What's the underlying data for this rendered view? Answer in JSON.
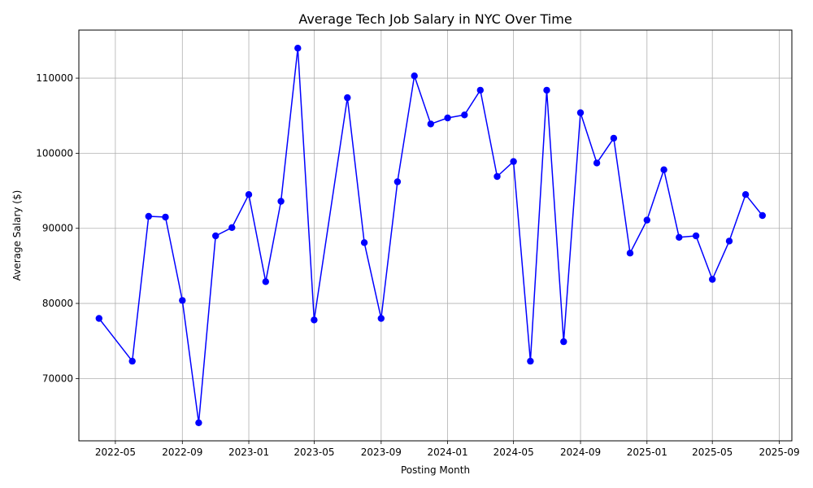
{
  "chart_data": {
    "type": "line",
    "title": "Average Tech Job Salary in NYC Over Time",
    "xlabel": "Posting Month",
    "ylabel": "Average Salary ($)",
    "color": "#0000ff",
    "grid": true,
    "xlim": [
      "2022-02-23",
      "2025-09-24"
    ],
    "ylim": [
      61700,
      116400
    ],
    "x_ticks": [
      "2022-05",
      "2022-09",
      "2023-01",
      "2023-05",
      "2023-09",
      "2024-01",
      "2024-05",
      "2024-09",
      "2025-01",
      "2025-05",
      "2025-09"
    ],
    "y_ticks": [
      70000,
      80000,
      90000,
      100000,
      110000
    ],
    "series": [
      {
        "x": [
          "2022-04",
          "2022-06",
          "2022-07",
          "2022-08",
          "2022-09",
          "2022-10",
          "2022-11",
          "2022-12",
          "2023-01",
          "2023-02",
          "2023-03",
          "2023-04",
          "2023-05",
          "2023-07",
          "2023-08",
          "2023-09",
          "2023-10",
          "2023-11",
          "2023-12",
          "2024-01",
          "2024-02",
          "2024-03",
          "2024-04",
          "2024-05",
          "2024-06",
          "2024-07",
          "2024-08",
          "2024-09",
          "2024-10",
          "2024-11",
          "2024-12",
          "2025-01",
          "2025-02",
          "2025-03",
          "2025-04",
          "2025-05",
          "2025-06",
          "2025-07",
          "2025-08"
        ],
        "values": [
          78000,
          72300,
          91600,
          91500,
          80400,
          64100,
          89000,
          90100,
          94500,
          82900,
          93600,
          114000,
          77800,
          107400,
          88100,
          78000,
          96200,
          110300,
          103900,
          104700,
          105100,
          108400,
          96900,
          98900,
          72300,
          108400,
          74900,
          105400,
          98700,
          102000,
          86700,
          91100,
          97800,
          88800,
          89000,
          83200,
          88300,
          94500,
          91700
        ]
      }
    ]
  }
}
